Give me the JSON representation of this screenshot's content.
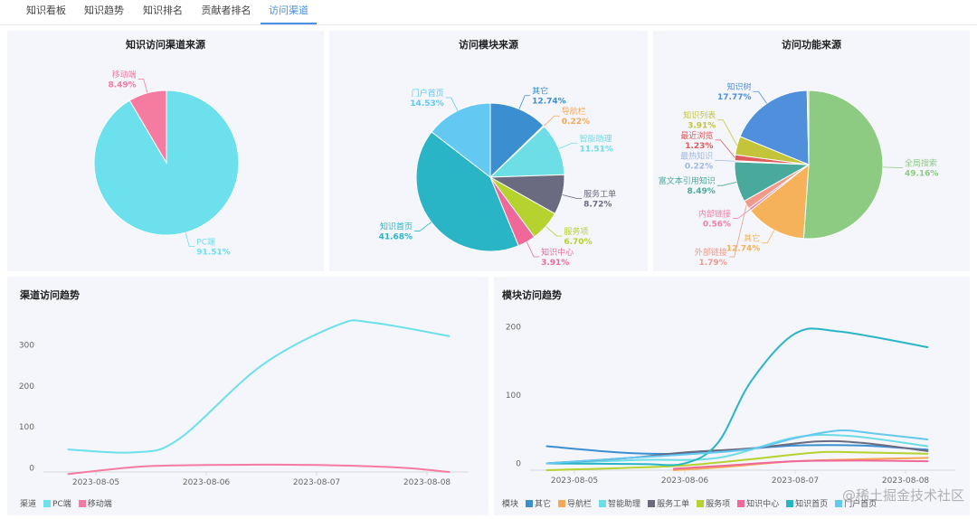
{
  "tabs": [
    {
      "label": "知识看板",
      "active": false
    },
    {
      "label": "知识趋势",
      "active": false
    },
    {
      "label": "知识排名",
      "active": false
    },
    {
      "label": "贡献者排名",
      "active": false
    },
    {
      "label": "访问渠道",
      "active": true
    }
  ],
  "accent_color": "#4a8fe7",
  "watermark": "@稀土掘金技术社区",
  "chart_data": [
    {
      "type": "pie",
      "title": "知识访问渠道来源",
      "slices": [
        {
          "label": "PC端",
          "percent_label": "91.51%",
          "value": 91.51,
          "color": "#6ce0ec"
        },
        {
          "label": "移动端",
          "percent_label": "8.49%",
          "value": 8.49,
          "color": "#f57ba0"
        }
      ]
    },
    {
      "type": "pie",
      "title": "访问模块来源",
      "slices": [
        {
          "label": "其它",
          "percent_label": "12.74%",
          "value": 12.74,
          "color": "#3b8fd0"
        },
        {
          "label": "导航栏",
          "percent_label": "0.22%",
          "value": 0.22,
          "color": "#f5a855"
        },
        {
          "label": "智能助理",
          "percent_label": "11.51%",
          "value": 11.51,
          "color": "#6ddde6"
        },
        {
          "label": "服务工单",
          "percent_label": "8.72%",
          "value": 8.72,
          "color": "#6a6a80"
        },
        {
          "label": "服务项",
          "percent_label": "6.70%",
          "value": 6.7,
          "color": "#b5d22f"
        },
        {
          "label": "知识中心",
          "percent_label": "3.91%",
          "value": 3.91,
          "color": "#f0679a"
        },
        {
          "label": "知识首页",
          "percent_label": "41.68%",
          "value": 41.68,
          "color": "#2ab5c7"
        },
        {
          "label": "门户首页",
          "percent_label": "14.53%",
          "value": 14.53,
          "color": "#63c8f2"
        }
      ]
    },
    {
      "type": "pie",
      "title": "访问功能来源",
      "slices": [
        {
          "label": "全局搜索",
          "percent_label": "49.16%",
          "value": 49.16,
          "color": "#8ecb82"
        },
        {
          "label": "其它",
          "percent_label": "12.74%",
          "value": 12.74,
          "color": "#f6b25a"
        },
        {
          "label": "内部链接",
          "percent_label": "0.56%",
          "value": 0.56,
          "color": "#f07fa8"
        },
        {
          "label": "外部链接",
          "percent_label": "1.79%",
          "value": 1.79,
          "color": "#f29a8a"
        },
        {
          "label": "富文本引用知识",
          "percent_label": "8.49%",
          "value": 8.49,
          "color": "#4aa99d"
        },
        {
          "label": "最热知识",
          "percent_label": "0.22%",
          "value": 0.22,
          "color": "#9fb7e6"
        },
        {
          "label": "最近浏览",
          "percent_label": "1.23%",
          "value": 1.23,
          "color": "#e05a5a"
        },
        {
          "label": "知识列表",
          "percent_label": "3.91%",
          "value": 3.91,
          "color": "#c3c43a"
        },
        {
          "label": "知识树",
          "percent_label": "17.77%",
          "value": 17.77,
          "color": "#4f8fdc"
        },
        {
          "label": "",
          "percent_label": "",
          "value": 0.33,
          "color": "#d0d0d0"
        }
      ]
    },
    {
      "type": "line",
      "title": "渠道访问趋势",
      "x": [
        "2023-08-05",
        "2023-08-06",
        "2023-08-07",
        "2023-08-08"
      ],
      "y_ticks": [
        0,
        100,
        200,
        300
      ],
      "ylim": [
        -10,
        370
      ],
      "legend_title": "渠道",
      "series": [
        {
          "name": "PC端",
          "color": "#6ce0ec",
          "points": [
            [
              -0.25,
              45
            ],
            [
              0.35,
              38
            ],
            [
              0.75,
              70
            ],
            [
              1.5,
              250
            ],
            [
              2.2,
              350
            ],
            [
              2.5,
              355
            ],
            [
              3.2,
              322
            ]
          ]
        },
        {
          "name": "移动端",
          "color": "#f57ba0",
          "points": [
            [
              -0.25,
              -15
            ],
            [
              0.4,
              3
            ],
            [
              1.0,
              7
            ],
            [
              1.6,
              8
            ],
            [
              2.2,
              6
            ],
            [
              2.8,
              0
            ],
            [
              3.2,
              -10
            ]
          ]
        }
      ]
    },
    {
      "type": "line",
      "title": "模块访问趋势",
      "x": [
        "2023-08-05",
        "2023-08-06",
        "2023-08-07",
        "2023-08-08"
      ],
      "y_ticks": [
        0,
        100,
        200
      ],
      "ylim": [
        -10,
        215
      ],
      "legend_title": "模块",
      "series": [
        {
          "name": "其它",
          "color": "#3b8fd0",
          "points": [
            [
              -0.25,
              25
            ],
            [
              0.4,
              16
            ],
            [
              0.9,
              14
            ],
            [
              1.4,
              19
            ],
            [
              2.0,
              26
            ],
            [
              2.6,
              26
            ],
            [
              3.2,
              20
            ]
          ]
        },
        {
          "name": "导航栏",
          "color": "#f5a855",
          "points": [
            [
              0.9,
              -10
            ],
            [
              1.3,
              -6
            ],
            [
              2.0,
              3
            ],
            [
              2.6,
              6
            ],
            [
              3.2,
              8
            ]
          ]
        },
        {
          "name": "智能助理",
          "color": "#6ddde6",
          "points": [
            [
              -0.25,
              0
            ],
            [
              0.6,
              5
            ],
            [
              1.3,
              8
            ],
            [
              2.0,
              38
            ],
            [
              2.5,
              40
            ],
            [
              3.2,
              25
            ]
          ]
        },
        {
          "name": "服务工单",
          "color": "#6a6a80",
          "points": [
            [
              -0.25,
              0
            ],
            [
              0.5,
              8
            ],
            [
              1.0,
              16
            ],
            [
              1.6,
              22
            ],
            [
              2.2,
              32
            ],
            [
              2.6,
              30
            ],
            [
              3.2,
              18
            ]
          ]
        },
        {
          "name": "服务项",
          "color": "#b5d22f",
          "points": [
            [
              -0.25,
              -10
            ],
            [
              0.4,
              -7
            ],
            [
              1.0,
              -3
            ],
            [
              1.6,
              6
            ],
            [
              2.2,
              16
            ],
            [
              2.6,
              16
            ],
            [
              3.2,
              14
            ]
          ]
        },
        {
          "name": "知识中心",
          "color": "#f0679a",
          "points": [
            [
              0.9,
              -8
            ],
            [
              1.4,
              -3
            ],
            [
              2.0,
              3
            ],
            [
              2.6,
              4
            ],
            [
              3.2,
              3
            ]
          ]
        },
        {
          "name": "知识首页",
          "color": "#2ab5c7",
          "points": [
            [
              -0.25,
              0
            ],
            [
              0.6,
              -1
            ],
            [
              1.0,
              0
            ],
            [
              1.3,
              30
            ],
            [
              1.6,
              120
            ],
            [
              2.0,
              190
            ],
            [
              2.4,
              193
            ],
            [
              3.2,
              170
            ]
          ]
        },
        {
          "name": "门户首页",
          "color": "#63c8f2",
          "points": [
            [
              -0.25,
              0
            ],
            [
              0.5,
              8
            ],
            [
              1.0,
              13
            ],
            [
              1.6,
              21
            ],
            [
              2.0,
              37
            ],
            [
              2.4,
              48
            ],
            [
              2.7,
              44
            ],
            [
              3.2,
              35
            ]
          ]
        }
      ]
    }
  ]
}
